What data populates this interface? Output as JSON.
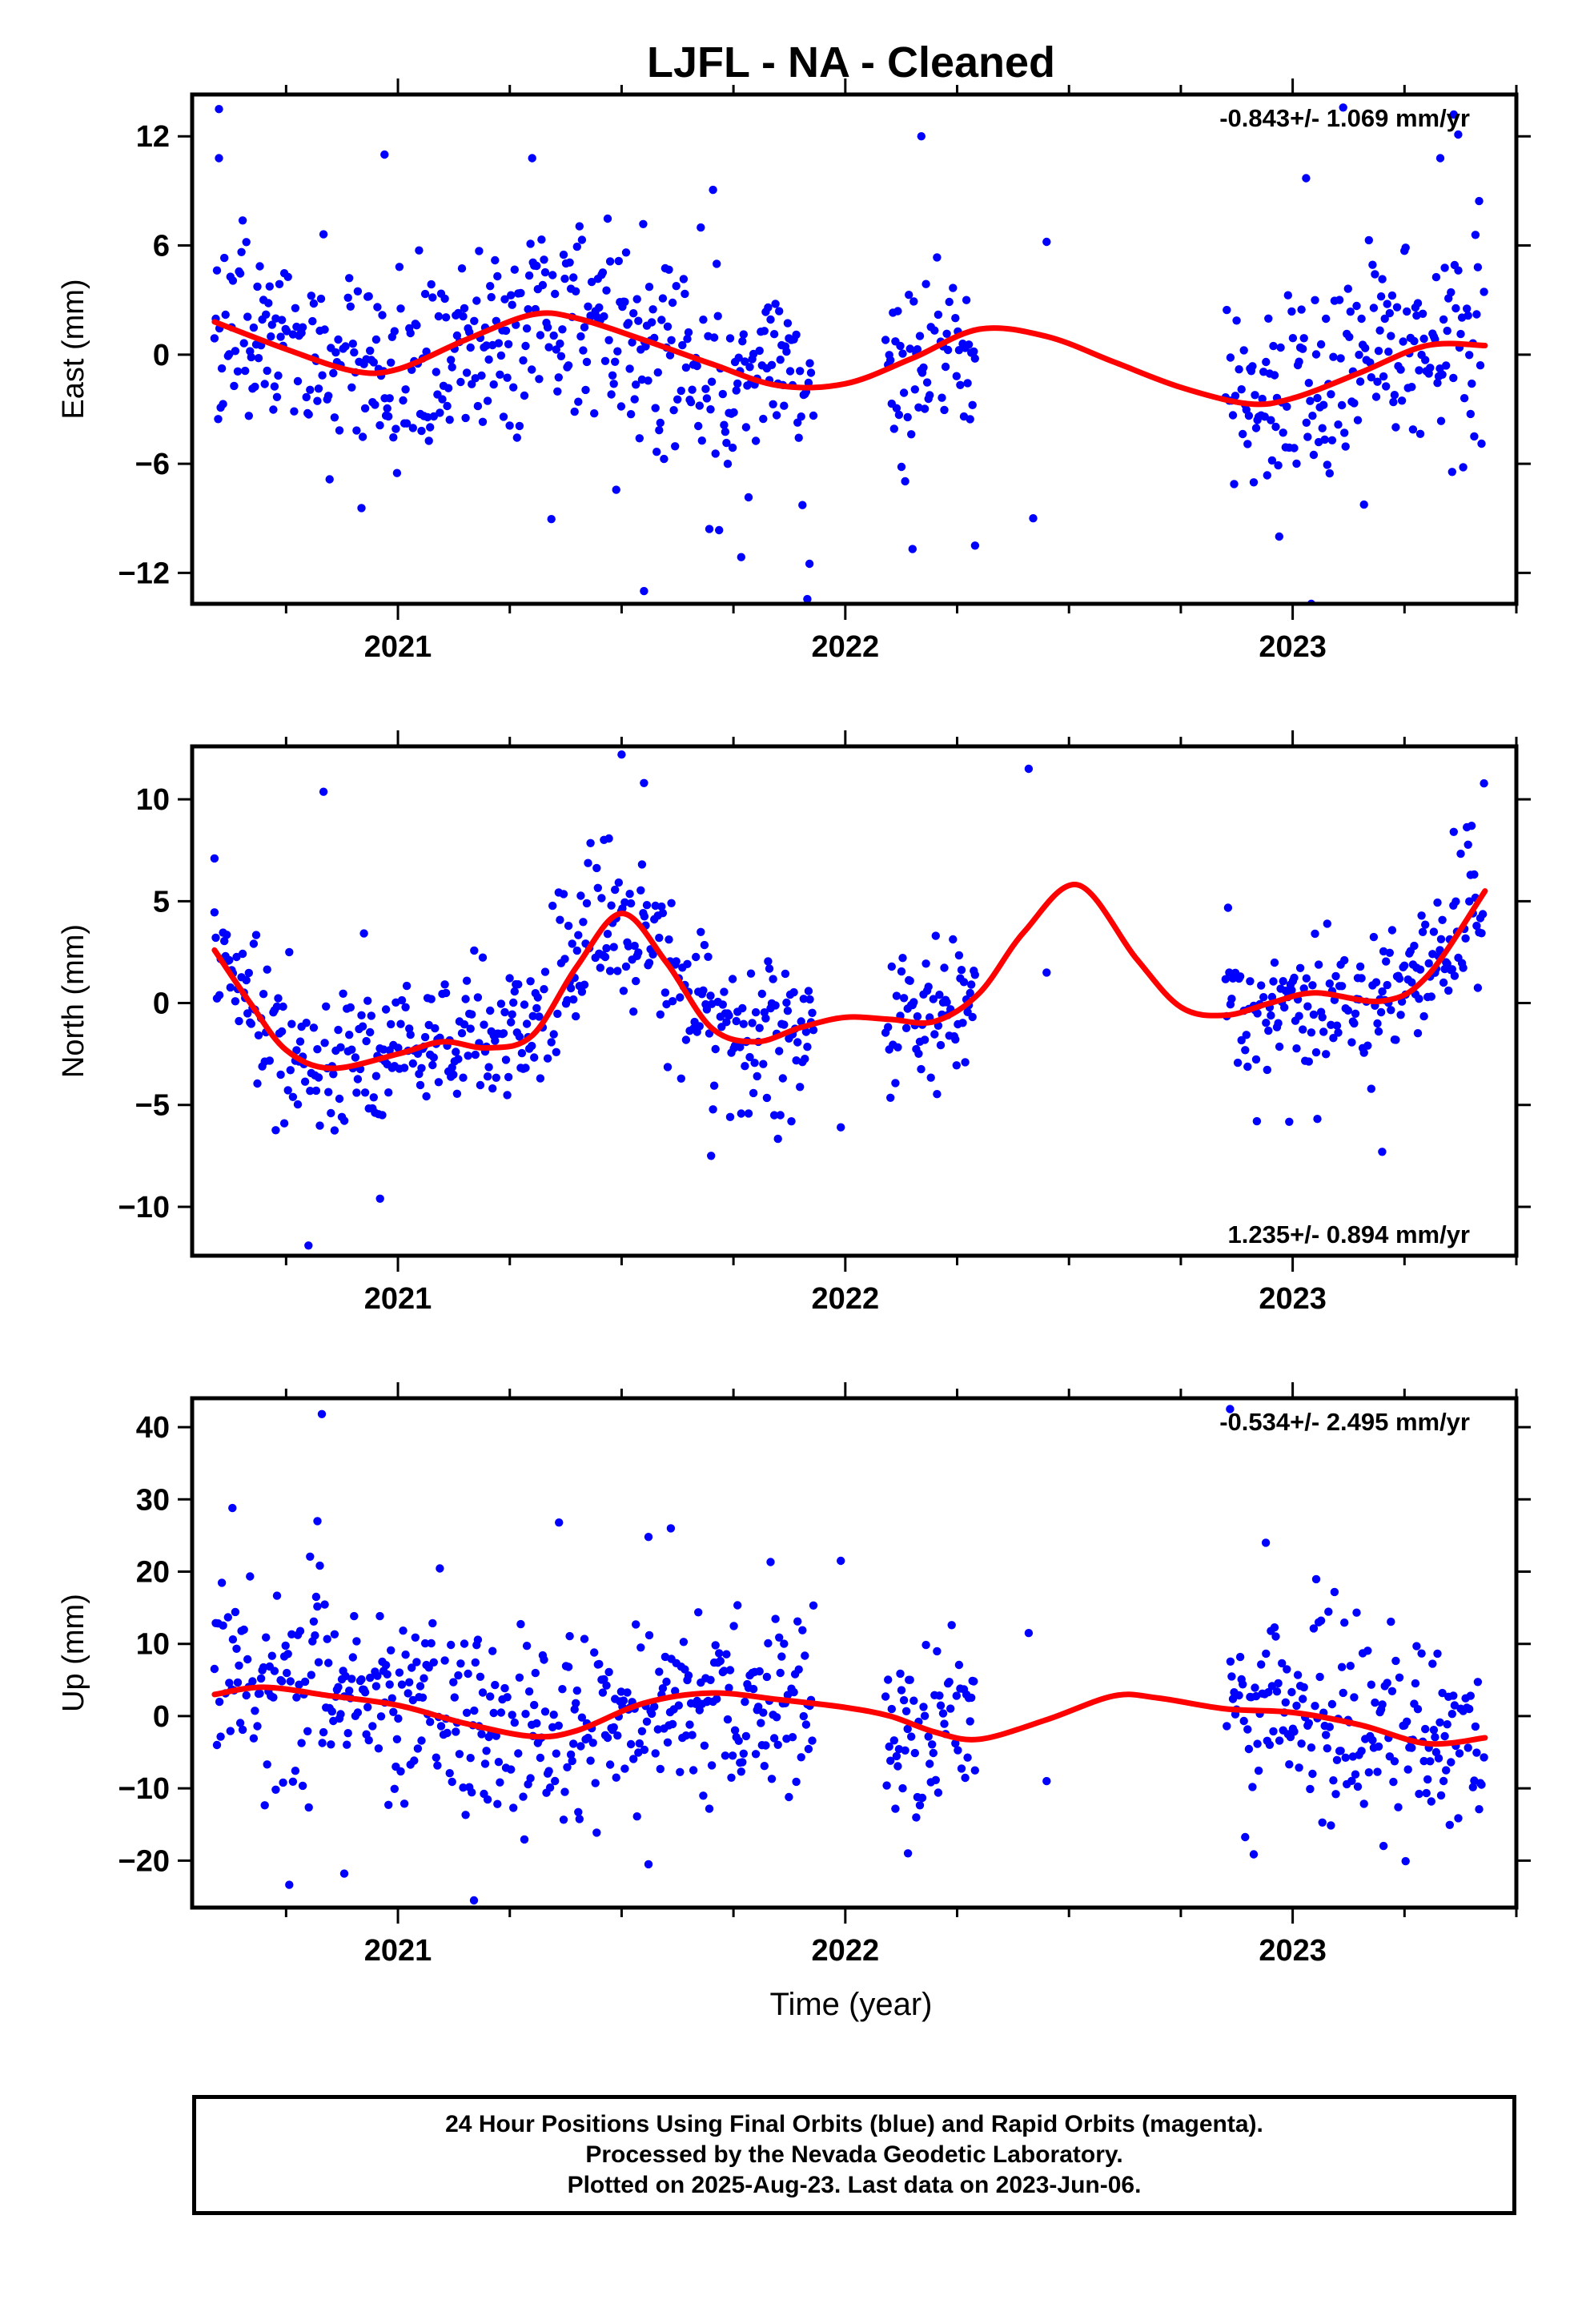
{
  "title": "LJFL  - NA - Cleaned",
  "xlabel": "Time (year)",
  "footer": {
    "line1": "24 Hour Positions Using Final Orbits (blue) and Rapid Orbits (magenta).",
    "line2": "Processed by the Nevada Geodetic Laboratory.",
    "line3": "Plotted on 2025-Aug-23. Last data on 2023-Jun-06."
  },
  "colors": {
    "points": "#0000ff",
    "fit": "#ff0000",
    "axes": "#000000"
  },
  "chart_data": [
    {
      "type": "scatter",
      "ylabel": "East (mm)",
      "rate_label": "-0.843+/- 1.069 mm/yr",
      "xlim": [
        2020.54,
        2023.5
      ],
      "ylim": [
        -13.7,
        14.3
      ],
      "x_ticks": [
        2021,
        2022,
        2023
      ],
      "x_tick_labels": [
        "2021",
        "2022",
        "2023"
      ],
      "y_ticks": [
        -12,
        -6,
        0,
        6,
        12
      ],
      "y_tick_labels": [
        "−12",
        "−6",
        "0",
        "6",
        "12"
      ],
      "fit": {
        "x": [
          2020.59,
          2020.75,
          2020.9,
          2021.0,
          2021.15,
          2021.3,
          2021.4,
          2021.55,
          2021.7,
          2021.85,
          2022.0,
          2022.15,
          2022.3,
          2022.45,
          2022.6,
          2022.75,
          2022.9,
          2023.0,
          2023.15,
          2023.3,
          2023.43
        ],
        "y": [
          1.8,
          0.3,
          -0.9,
          -0.8,
          0.8,
          2.2,
          2.0,
          0.8,
          -0.5,
          -1.7,
          -1.6,
          -0.2,
          1.4,
          1.0,
          -0.4,
          -1.8,
          -2.7,
          -2.4,
          -1.0,
          0.5,
          0.5
        ]
      },
      "segments": [
        {
          "start": 2020.59,
          "end": 2021.93,
          "spread": 2.6,
          "outliers": 0.05,
          "out_scale": 5
        },
        {
          "start": 2022.09,
          "end": 2022.29,
          "spread": 2.8,
          "outliers": 0.05,
          "out_scale": 4
        },
        {
          "start": 2022.85,
          "end": 2023.43,
          "spread": 2.8,
          "outliers": 0.05,
          "out_scale": 5
        }
      ],
      "extra_points": [
        [
          2020.6,
          13.5
        ],
        [
          2020.6,
          10.8
        ],
        [
          2020.97,
          11.0
        ],
        [
          2021.3,
          10.8
        ],
        [
          2021.55,
          -13.0
        ],
        [
          2021.92,
          -11.5
        ],
        [
          2022.17,
          12.0
        ],
        [
          2022.29,
          -10.5
        ],
        [
          2022.42,
          -9.0
        ],
        [
          2022.45,
          6.2
        ],
        [
          2022.97,
          -10.0
        ],
        [
          2023.03,
          9.7
        ],
        [
          2023.33,
          10.8
        ],
        [
          2023.36,
          13.2
        ],
        [
          2023.37,
          12.1
        ]
      ]
    },
    {
      "type": "scatter",
      "ylabel": "North (mm)",
      "rate_label": "1.235+/- 0.894 mm/yr",
      "xlim": [
        2020.54,
        2023.5
      ],
      "ylim": [
        -12.4,
        12.6
      ],
      "x_ticks": [
        2021,
        2022,
        2023
      ],
      "x_tick_labels": [
        "2021",
        "2022",
        "2023"
      ],
      "y_ticks": [
        -10,
        -5,
        0,
        5,
        10
      ],
      "y_tick_labels": [
        "−10",
        "−5",
        "0",
        "5",
        "10"
      ],
      "fit": {
        "x": [
          2020.59,
          2020.67,
          2020.75,
          2020.85,
          2021.0,
          2021.1,
          2021.2,
          2021.3,
          2021.4,
          2021.5,
          2021.6,
          2021.7,
          2021.8,
          2021.9,
          2022.0,
          2022.1,
          2022.2,
          2022.3,
          2022.4,
          2022.52,
          2022.65,
          2022.75,
          2022.85,
          2022.95,
          2023.05,
          2023.2,
          2023.3,
          2023.43
        ],
        "y": [
          2.6,
          0.0,
          -2.3,
          -3.2,
          -2.5,
          -1.9,
          -2.2,
          -1.6,
          1.8,
          4.4,
          2.0,
          -1.2,
          -1.9,
          -1.2,
          -0.7,
          -0.8,
          -0.9,
          0.5,
          3.5,
          5.8,
          2.2,
          -0.2,
          -0.6,
          0.0,
          0.5,
          0.1,
          1.3,
          5.5
        ]
      },
      "segments": [
        {
          "start": 2020.59,
          "end": 2021.93,
          "spread": 1.8,
          "outliers": 0.05,
          "out_scale": 4
        },
        {
          "start": 2022.09,
          "end": 2022.29,
          "spread": 1.6,
          "outliers": 0.05,
          "out_scale": 3
        },
        {
          "start": 2022.85,
          "end": 2023.43,
          "spread": 1.8,
          "outliers": 0.05,
          "out_scale": 4
        }
      ],
      "extra_points": [
        [
          2020.59,
          7.1
        ],
        [
          2020.8,
          -11.9
        ],
        [
          2020.96,
          -9.6
        ],
        [
          2021.5,
          12.2
        ],
        [
          2021.55,
          10.8
        ],
        [
          2021.7,
          -7.5
        ],
        [
          2021.99,
          -6.1
        ],
        [
          2022.41,
          11.5
        ],
        [
          2022.45,
          1.5
        ],
        [
          2022.92,
          -5.8
        ],
        [
          2023.2,
          -7.3
        ],
        [
          2023.36,
          8.4
        ],
        [
          2023.4,
          8.7
        ]
      ]
    },
    {
      "type": "scatter",
      "ylabel": "Up (mm)",
      "rate_label": "-0.534+/- 2.495 mm/yr",
      "xlim": [
        2020.54,
        2023.5
      ],
      "ylim": [
        -26.5,
        44
      ],
      "x_ticks": [
        2021,
        2022,
        2023
      ],
      "x_tick_labels": [
        "2021",
        "2022",
        "2023"
      ],
      "y_ticks": [
        -20,
        -10,
        0,
        10,
        20,
        30,
        40
      ],
      "y_tick_labels": [
        "−20",
        "−10",
        "0",
        "10",
        "20",
        "30",
        "40"
      ],
      "fit": {
        "x": [
          2020.59,
          2020.7,
          2020.85,
          2021.0,
          2021.15,
          2021.3,
          2021.4,
          2021.55,
          2021.7,
          2021.85,
          2022.0,
          2022.1,
          2022.2,
          2022.3,
          2022.45,
          2022.6,
          2022.7,
          2022.85,
          2023.0,
          2023.15,
          2023.3,
          2023.43
        ],
        "y": [
          3.0,
          4.0,
          2.8,
          1.5,
          -1.0,
          -2.8,
          -2.0,
          1.8,
          3.2,
          2.3,
          1.2,
          0.0,
          -2.2,
          -3.2,
          -0.5,
          2.8,
          2.5,
          1.0,
          0.5,
          -1.2,
          -3.8,
          -3.0
        ]
      },
      "segments": [
        {
          "start": 2020.59,
          "end": 2021.93,
          "spread": 6.5,
          "outliers": 0.05,
          "out_scale": 3
        },
        {
          "start": 2022.09,
          "end": 2022.29,
          "spread": 5.5,
          "outliers": 0.05,
          "out_scale": 3
        },
        {
          "start": 2022.85,
          "end": 2023.43,
          "spread": 6.5,
          "outliers": 0.05,
          "out_scale": 3
        }
      ],
      "extra_points": [
        [
          2020.63,
          28.8
        ],
        [
          2020.83,
          41.8
        ],
        [
          2020.82,
          27.0
        ],
        [
          2020.88,
          -21.8
        ],
        [
          2021.17,
          -25.5
        ],
        [
          2021.36,
          26.8
        ],
        [
          2021.56,
          24.8
        ],
        [
          2021.61,
          26.0
        ],
        [
          2021.56,
          -20.5
        ],
        [
          2021.99,
          21.5
        ],
        [
          2022.14,
          -19.0
        ],
        [
          2022.41,
          11.5
        ],
        [
          2022.45,
          -9.0
        ],
        [
          2022.94,
          24.0
        ],
        [
          2022.86,
          42.5
        ]
      ]
    }
  ]
}
